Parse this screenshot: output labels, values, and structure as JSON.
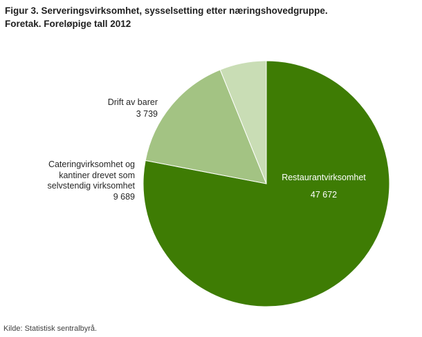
{
  "title": {
    "line1": "Figur 3. Serveringsvirksomhet, sysselsetting etter næringshovedgruppe.",
    "line2": "Foretak. Foreløpige tall 2012"
  },
  "source": "Kilde: Statistisk sentralbyrå.",
  "chart_data": {
    "type": "pie",
    "title": "Figur 3. Serveringsvirksomhet, sysselsetting etter næringshovedgruppe. Foretak. Foreløpige tall 2012",
    "total": 61100,
    "start_angle_deg": 0,
    "direction": "clockwise",
    "legend": "none",
    "slices": [
      {
        "label": "Restaurantvirksomhet",
        "value": 47672,
        "display_value": "47 672",
        "color": "#3e7c04",
        "label_color": "#ffffff",
        "label_position": "inside"
      },
      {
        "label": "Cateringvirksomhet og kantiner drevet som selvstendig virksomhet",
        "label_lines": [
          "Cateringvirksomhet og",
          "kantiner drevet som",
          "selvstendig virksomhet"
        ],
        "value": 9689,
        "display_value": "9 689",
        "color": "#a3c383",
        "label_color": "#262626",
        "label_position": "outside-left"
      },
      {
        "label": "Drift av barer",
        "value": 3739,
        "display_value": "3 739",
        "color": "#c9ddb5",
        "label_color": "#262626",
        "label_position": "outside-top-left"
      }
    ]
  }
}
